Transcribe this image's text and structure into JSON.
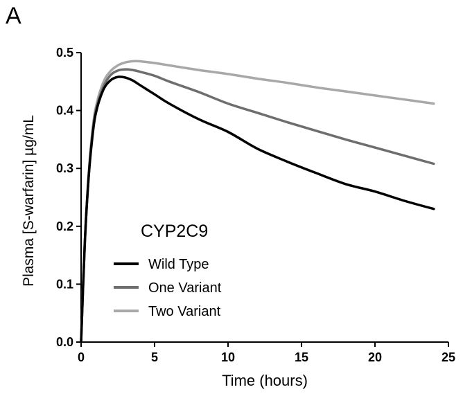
{
  "panel_label": "A",
  "chart_data": {
    "type": "line",
    "title": "",
    "xlabel": "Time (hours)",
    "ylabel": "Plasma [S-warfarin] µg/mL",
    "xlim": [
      0,
      25
    ],
    "ylim": [
      0,
      0.5
    ],
    "xticks": [
      0,
      5,
      10,
      15,
      20,
      25
    ],
    "yticks": [
      0.0,
      0.1,
      0.2,
      0.3,
      0.4,
      0.5
    ],
    "xtick_labels": [
      "0",
      "5",
      "10",
      "15",
      "20",
      "25"
    ],
    "ytick_labels": [
      "0.0",
      "0.1",
      "0.2",
      "0.3",
      "0.4",
      "0.5"
    ],
    "grid": false,
    "legend_title": "CYP2C9",
    "legend_position": "lower-left",
    "series": [
      {
        "name": "Wild Type",
        "color": "#000000",
        "x": [
          0,
          0.25,
          0.5,
          0.75,
          1,
          1.5,
          2,
          2.5,
          3,
          3.5,
          4,
          5,
          6,
          8,
          10,
          12,
          14,
          16,
          18,
          20,
          22,
          24
        ],
        "y": [
          0,
          0.17,
          0.28,
          0.35,
          0.395,
          0.435,
          0.452,
          0.458,
          0.457,
          0.452,
          0.444,
          0.428,
          0.412,
          0.385,
          0.363,
          0.334,
          0.312,
          0.292,
          0.273,
          0.26,
          0.244,
          0.23
        ]
      },
      {
        "name": "One Variant",
        "color": "#6e6e6e",
        "x": [
          0,
          0.25,
          0.5,
          0.75,
          1,
          1.5,
          2,
          2.5,
          3,
          3.5,
          4,
          5,
          6,
          8,
          10,
          12,
          14,
          16,
          18,
          20,
          22,
          24
        ],
        "y": [
          0,
          0.17,
          0.28,
          0.355,
          0.4,
          0.44,
          0.461,
          0.469,
          0.471,
          0.47,
          0.467,
          0.46,
          0.45,
          0.432,
          0.412,
          0.396,
          0.38,
          0.365,
          0.35,
          0.336,
          0.322,
          0.308
        ]
      },
      {
        "name": "Two Variant",
        "color": "#a8a8a8",
        "x": [
          0,
          0.25,
          0.5,
          0.75,
          1,
          1.5,
          2,
          2.5,
          3,
          3.5,
          4,
          5,
          6,
          8,
          10,
          12,
          14,
          16,
          18,
          20,
          22,
          24
        ],
        "y": [
          0,
          0.17,
          0.285,
          0.36,
          0.405,
          0.448,
          0.468,
          0.478,
          0.483,
          0.485,
          0.485,
          0.482,
          0.478,
          0.47,
          0.463,
          0.455,
          0.448,
          0.44,
          0.433,
          0.426,
          0.419,
          0.412
        ]
      }
    ]
  }
}
